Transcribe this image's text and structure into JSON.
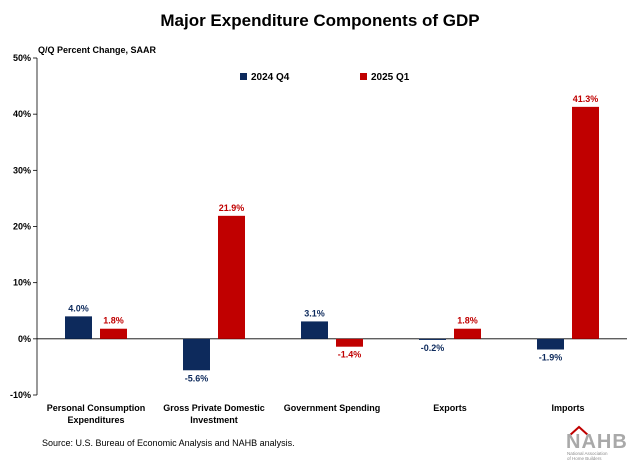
{
  "chart_data": {
    "type": "bar",
    "title": "Major Expenditure Components of GDP",
    "ylabel": "Q/Q Percent Change, SAAR",
    "xlabel": "",
    "categories": [
      [
        "Personal Consumption",
        "Expenditures"
      ],
      [
        "Gross Private Domestic",
        "Investment"
      ],
      [
        "Government Spending"
      ],
      [
        "Exports"
      ],
      [
        "Imports"
      ]
    ],
    "series": [
      {
        "name": "2024 Q4",
        "color": "#0d2a5c",
        "values": [
          4.0,
          -5.6,
          3.1,
          -0.2,
          -1.9
        ],
        "labels": [
          "4.0%",
          "-5.6%",
          "3.1%",
          "-0.2%",
          "-1.9%"
        ]
      },
      {
        "name": "2025 Q1",
        "color": "#c00000",
        "values": [
          1.8,
          21.9,
          -1.4,
          1.8,
          41.3
        ],
        "labels": [
          "1.8%",
          "21.9%",
          "-1.4%",
          "1.8%",
          "41.3%"
        ]
      }
    ],
    "ylim": [
      -10,
      50
    ],
    "yticks": [
      -10,
      0,
      10,
      20,
      30,
      40,
      50
    ],
    "ytick_labels": [
      "-10%",
      "0%",
      "10%",
      "20%",
      "30%",
      "40%",
      "50%"
    ],
    "legend_position": "top-center",
    "grid": false
  },
  "source": "Source: U.S. Bureau of Economic Analysis and NAHB analysis.",
  "logo": {
    "text": "NAHB",
    "subtext": [
      "National Association",
      "of Home Builders"
    ]
  }
}
